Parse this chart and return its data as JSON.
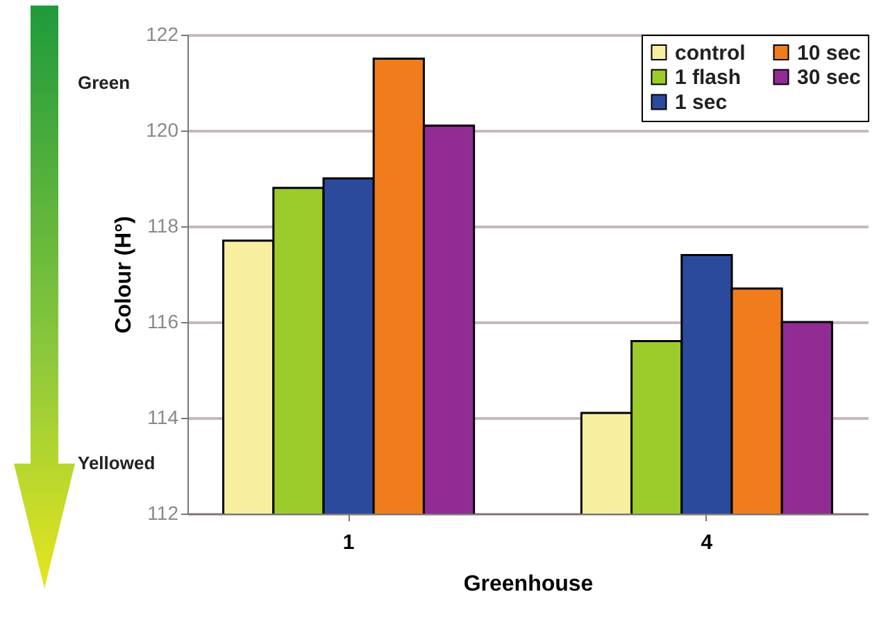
{
  "chart_data": {
    "type": "bar",
    "xlabel": "Greenhouse",
    "ylabel": "Colour (H°)",
    "categories": [
      "1",
      "4"
    ],
    "series": [
      {
        "name": "control",
        "color": "#f7eea0",
        "values": [
          117.7,
          114.1
        ]
      },
      {
        "name": "1 flash",
        "color": "#9ccc2c",
        "values": [
          118.8,
          115.6
        ]
      },
      {
        "name": "1 sec",
        "color": "#2c4a9c",
        "values": [
          119.0,
          117.4
        ]
      },
      {
        "name": "10 sec",
        "color": "#f07c1c",
        "values": [
          121.5,
          116.7
        ]
      },
      {
        "name": "30 sec",
        "color": "#902c94",
        "values": [
          120.1,
          116.0
        ]
      }
    ],
    "ylim": [
      112,
      122
    ],
    "yticks": [
      112,
      114,
      116,
      118,
      120,
      122
    ],
    "grid": "y",
    "legend": "top right",
    "annotations": [
      "Green",
      "Yellowed"
    ]
  }
}
